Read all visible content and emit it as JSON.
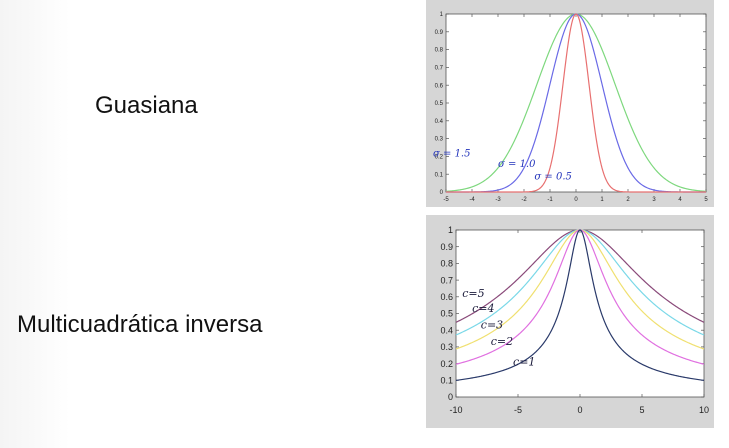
{
  "labels": {
    "top": "Guasiana",
    "bottom": "Multicuadrática inversa"
  },
  "chart_data": [
    {
      "type": "line",
      "title": "",
      "xlabel": "",
      "ylabel": "",
      "xlim": [
        -5,
        5
      ],
      "ylim": [
        0,
        1
      ],
      "xticks": [
        -5,
        -4,
        -3,
        -2,
        -1,
        0,
        1,
        2,
        3,
        4,
        5
      ],
      "yticks": [
        0,
        0.1,
        0.2,
        0.3,
        0.4,
        0.5,
        0.6,
        0.7,
        0.8,
        0.9,
        1
      ],
      "grid": false,
      "series": [
        {
          "name": "σ = 1.5",
          "function": "exp(-x^2/(2*1.5^2))",
          "color": "#7ed87e",
          "label_text": "σ = 1.5",
          "label_color": "#2233bb"
        },
        {
          "name": "σ = 1.0",
          "function": "exp(-x^2/(2*1.0^2))",
          "color": "#6a6ae6",
          "label_text": "σ = 1.0",
          "label_color": "#2233bb"
        },
        {
          "name": "σ = 0.5",
          "function": "exp(-x^2/(2*0.5^2))",
          "color": "#e87070",
          "label_text": "σ = 0.5",
          "label_color": "#2233bb"
        }
      ]
    },
    {
      "type": "line",
      "title": "",
      "xlabel": "",
      "ylabel": "",
      "xlim": [
        -10,
        10
      ],
      "ylim": [
        0,
        1
      ],
      "xticks": [
        -10,
        -5,
        0,
        5,
        10
      ],
      "yticks": [
        0,
        0.1,
        0.2,
        0.3,
        0.4,
        0.5,
        0.6,
        0.7,
        0.8,
        0.9,
        1
      ],
      "grid": false,
      "series": [
        {
          "name": "c=5",
          "function": "1/sqrt(1+(x/5)^2)",
          "color": "#8a4a7a",
          "label_text": "c=5",
          "label_color": "#1a1a3a"
        },
        {
          "name": "c=4",
          "function": "1/sqrt(1+(x/4)^2)",
          "color": "#7ad8e8",
          "label_text": "c=4",
          "label_color": "#1a1a3a"
        },
        {
          "name": "c=3",
          "function": "1/sqrt(1+(x/3)^2)",
          "color": "#f0e070",
          "label_text": "c=3",
          "label_color": "#1a1a3a"
        },
        {
          "name": "c=2",
          "function": "1/sqrt(1+(x/2)^2)",
          "color": "#e070e0",
          "label_text": "c=2",
          "label_color": "#1a1a3a"
        },
        {
          "name": "c=1",
          "function": "1/sqrt(1+x^2)",
          "color": "#2a3a6a",
          "label_text": "c=1",
          "label_color": "#1a1a3a"
        }
      ]
    }
  ]
}
